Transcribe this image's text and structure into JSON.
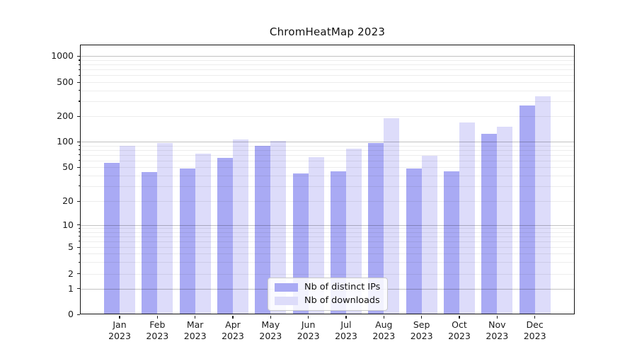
{
  "chart_data": {
    "type": "bar",
    "title": "ChromHeatMap 2023",
    "y_scale": "symlog",
    "grid": "horizontal major+minor, log spacing",
    "legend_position": "lower center",
    "ylim": [
      0,
      1000
    ],
    "yticks": [
      0,
      1,
      2,
      5,
      10,
      20,
      50,
      100,
      200,
      500,
      1000
    ],
    "major_grid_values": [
      1,
      10,
      100,
      1000
    ],
    "minor_grid_values": [
      2,
      3,
      4,
      5,
      6,
      7,
      8,
      9,
      20,
      30,
      40,
      50,
      60,
      70,
      80,
      90,
      200,
      300,
      400,
      500,
      600,
      700,
      800,
      900
    ],
    "categories": [
      "Jan",
      "Feb",
      "Mar",
      "Apr",
      "May",
      "Jun",
      "Jul",
      "Aug",
      "Sep",
      "Oct",
      "Nov",
      "Dec"
    ],
    "year_label": "2023",
    "series": [
      {
        "name": "Nb of distinct IPs",
        "color": "#a9aaf4",
        "values": [
          56,
          44,
          48,
          64,
          90,
          42,
          45,
          96,
          48,
          45,
          125,
          265
        ]
      },
      {
        "name": "Nb of downloads",
        "color": "#dddcfa",
        "values": [
          90,
          97,
          73,
          107,
          103,
          65,
          83,
          190,
          68,
          170,
          150,
          340
        ]
      }
    ]
  }
}
